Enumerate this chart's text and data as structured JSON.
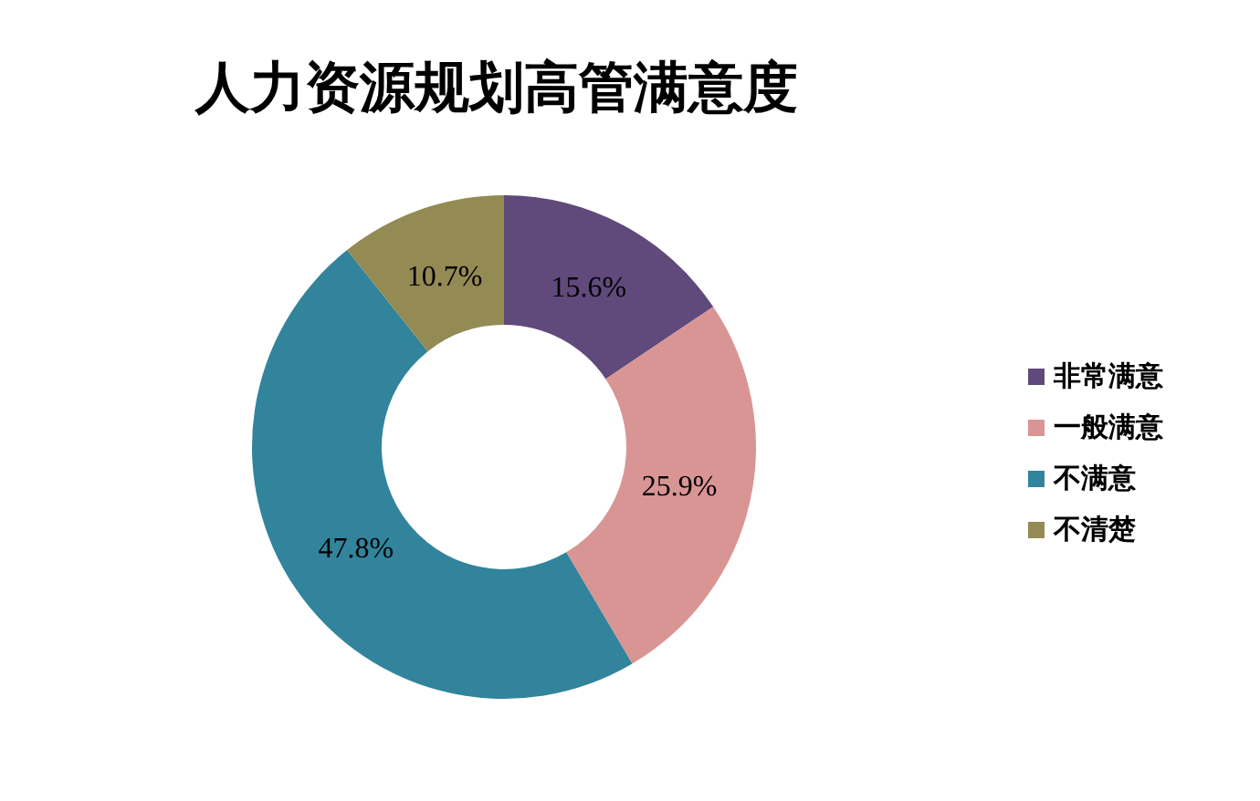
{
  "chart_data": {
    "type": "donut",
    "title": "人力资源规划高管满意度",
    "categories": [
      "非常满意",
      "一般满意",
      "不满意",
      "不清楚"
    ],
    "values": [
      15.6,
      25.9,
      47.8,
      10.7
    ],
    "colors": [
      "#604a7b",
      "#d99594",
      "#31849b",
      "#948a54"
    ],
    "value_labels": [
      "15.6%",
      "25.9%",
      "47.8%",
      "10.7%"
    ],
    "legend": "right"
  }
}
